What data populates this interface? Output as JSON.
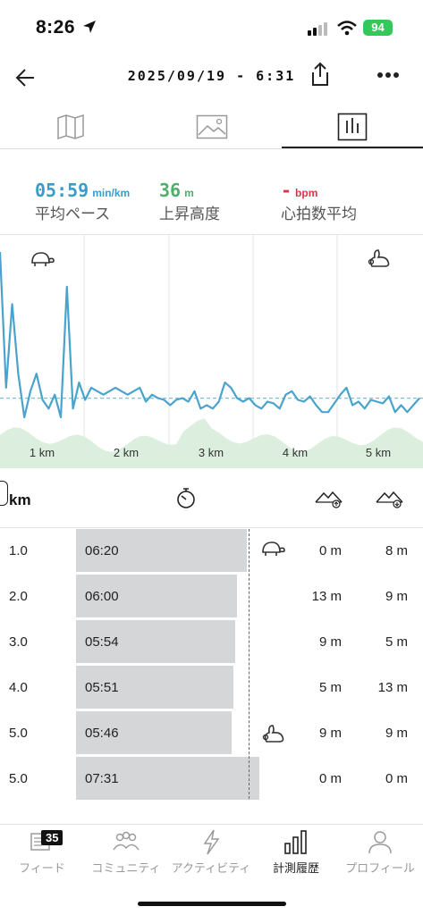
{
  "status_bar": {
    "time": "8:26",
    "battery": "94"
  },
  "header": {
    "title": "2025/09/19 - 6:31"
  },
  "tabs": [
    {
      "icon": "map-icon"
    },
    {
      "icon": "image-icon"
    },
    {
      "icon": "bar-chart-icon",
      "active": true
    }
  ],
  "stats": {
    "pace": {
      "value": "05:59",
      "unit": "min/km",
      "label": "平均ペース",
      "color": "#3a9cc9"
    },
    "ascent": {
      "value": "36",
      "unit": "m",
      "label": "上昇高度",
      "color": "#4fae6a"
    },
    "heart_rate": {
      "value": "-",
      "unit": "bpm",
      "label": "心拍数平均",
      "color": "#e0334a"
    }
  },
  "chart_data": {
    "type": "line",
    "x_labels": [
      "1 km",
      "2 km",
      "3 km",
      "4 km",
      "5 km"
    ],
    "pace_series": [
      0.0,
      0.78,
      0.3,
      0.7,
      0.95,
      0.8,
      0.7,
      0.85,
      0.9,
      0.82,
      0.95,
      0.2,
      0.9,
      0.75,
      0.85,
      0.78,
      0.8,
      0.82,
      0.8,
      0.78,
      0.8,
      0.82,
      0.8,
      0.78,
      0.86,
      0.82,
      0.84,
      0.85,
      0.88,
      0.85,
      0.84,
      0.86,
      0.8,
      0.9,
      0.88,
      0.9,
      0.86,
      0.75,
      0.78,
      0.84,
      0.86,
      0.84,
      0.88,
      0.9,
      0.86,
      0.87,
      0.9,
      0.82,
      0.8,
      0.85,
      0.86,
      0.83,
      0.88,
      0.92,
      0.92,
      0.87,
      0.82,
      0.78,
      0.88,
      0.86,
      0.9,
      0.85,
      0.86,
      0.87,
      0.83,
      0.92,
      0.88,
      0.92,
      0.88,
      0.84
    ],
    "average_line": 0.84,
    "colors": {
      "line": "#4aa3cc",
      "elevation": "#dcefdf",
      "average": "#7fbfdc"
    }
  },
  "table": {
    "headers": {
      "km": "km"
    },
    "rows": [
      {
        "km": "1.0",
        "time": "06:20",
        "bar_fraction": 0.93,
        "up": "0 m",
        "down": "8 m",
        "marker": "turtle"
      },
      {
        "km": "2.0",
        "time": "06:00",
        "bar_fraction": 0.88,
        "up": "13 m",
        "down": "9 m",
        "marker": ""
      },
      {
        "km": "3.0",
        "time": "05:54",
        "bar_fraction": 0.87,
        "up": "9 m",
        "down": "5 m",
        "marker": ""
      },
      {
        "km": "4.0",
        "time": "05:51",
        "bar_fraction": 0.86,
        "up": "5 m",
        "down": "13 m",
        "marker": ""
      },
      {
        "km": "5.0",
        "time": "05:46",
        "bar_fraction": 0.85,
        "up": "9 m",
        "down": "9 m",
        "marker": "rabbit"
      },
      {
        "km": "5.0",
        "time": "07:31",
        "bar_fraction": 1.0,
        "up": "0 m",
        "down": "0 m",
        "marker": ""
      }
    ]
  },
  "bottom_nav": {
    "badge": "35",
    "items": [
      {
        "label": "フィード",
        "icon": "feed-icon"
      },
      {
        "label": "コミュニティ",
        "icon": "community-icon"
      },
      {
        "label": "アクティビティ",
        "icon": "lightning-icon"
      },
      {
        "label": "計測履歴",
        "icon": "history-icon",
        "active": true
      },
      {
        "label": "プロフィール",
        "icon": "profile-icon"
      }
    ]
  }
}
